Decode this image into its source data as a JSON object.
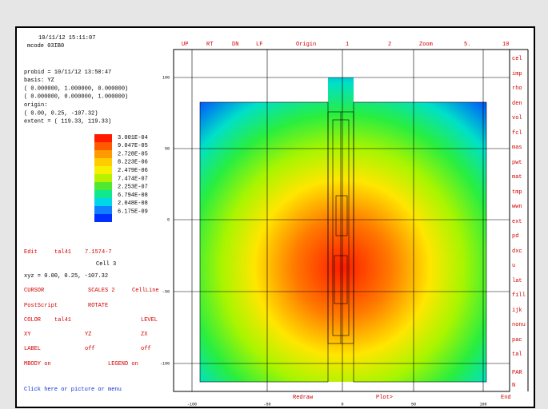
{
  "header": {
    "timestamp": "10/11/12 15:11:07",
    "code": "mcode 03IB0"
  },
  "info": [
    "probid =   10/11/12 13:50:47",
    "basis:   YZ",
    "( 0.000000, 1.000000, 0.000000)",
    "( 0.000000, 0.000000, 1.000000)",
    "origin:",
    "(     0.00,     0.25,   -107.32)",
    "extent = (   119.33,    119.33)"
  ],
  "legend": {
    "labels": [
      "3.001E-04",
      "9.047E-05",
      "2.728E-05",
      "8.223E-06",
      "2.479E-06",
      "7.474E-07",
      "2.253E-07",
      "6.794E-08",
      "2.048E-08",
      "6.175E-09"
    ]
  },
  "top_menu": [
    "UP",
    "RT",
    "DN",
    "LF",
    "Origin",
    "1",
    "2",
    "Zoom",
    "5.",
    "10"
  ],
  "side_menu": [
    "cel",
    "imp",
    "rho",
    "den",
    "vol",
    "fcl",
    "mas",
    "pwt",
    "mat",
    "tmp",
    "wwn",
    "ext",
    "pd",
    "dxc",
    "u",
    "lat",
    "fill",
    "ijk",
    "nonu",
    "pac",
    "tal",
    "PAR",
    "N"
  ],
  "edit": {
    "label": "Edit",
    "tally": "tal41",
    "value": "7.1574-7",
    "cell": "Cell   3",
    "xyz": "xyz =    0.00,     0.25,  -107.32"
  },
  "commands": [
    [
      "CURSOR",
      "SCALES 2",
      "CellLine"
    ],
    [
      "PostScript",
      "ROTATE"
    ],
    [
      "COLOR",
      "tal41",
      "LEVEL"
    ],
    [
      "XY",
      "YZ",
      "ZX"
    ],
    [
      "LABEL",
      "off",
      "off"
    ],
    [
      "MBODY  on",
      "LEGEND  on"
    ]
  ],
  "status": "Click here or picture or menu",
  "bottom_buttons": [
    "Redraw",
    "Plot>",
    "End"
  ],
  "axis": {
    "x_ticks": [
      "-100",
      "-50",
      "0",
      "50",
      "100"
    ],
    "y_ticks": [
      "100",
      "50",
      "0",
      "-50",
      "-100"
    ]
  }
}
